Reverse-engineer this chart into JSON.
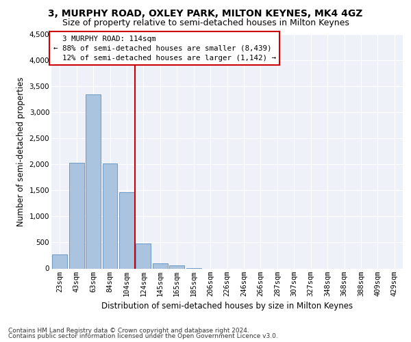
{
  "title1": "3, MURPHY ROAD, OXLEY PARK, MILTON KEYNES, MK4 4GZ",
  "title2": "Size of property relative to semi-detached houses in Milton Keynes",
  "xlabel": "Distribution of semi-detached houses by size in Milton Keynes",
  "ylabel": "Number of semi-detached properties",
  "footer1": "Contains HM Land Registry data © Crown copyright and database right 2024.",
  "footer2": "Contains public sector information licensed under the Open Government Licence v3.0.",
  "categories": [
    "23sqm",
    "43sqm",
    "63sqm",
    "84sqm",
    "104sqm",
    "124sqm",
    "145sqm",
    "165sqm",
    "185sqm",
    "206sqm",
    "226sqm",
    "246sqm",
    "266sqm",
    "287sqm",
    "307sqm",
    "327sqm",
    "348sqm",
    "368sqm",
    "388sqm",
    "409sqm",
    "429sqm"
  ],
  "values": [
    270,
    2030,
    3350,
    2020,
    1460,
    480,
    100,
    55,
    10,
    0,
    0,
    0,
    0,
    0,
    0,
    0,
    0,
    0,
    0,
    0,
    0
  ],
  "bar_color": "#aac4e0",
  "bar_edge_color": "#5a8fc0",
  "property_size": "114sqm",
  "property_name": "3 MURPHY ROAD",
  "pct_smaller": 88,
  "count_smaller": "8,439",
  "pct_larger": 12,
  "count_larger": "1,142",
  "annotation_box_color": "#ffffff",
  "annotation_box_edge": "#cc0000",
  "vline_color": "#cc0000",
  "vline_x": 4.5,
  "ylim": [
    0,
    4500
  ],
  "yticks": [
    0,
    500,
    1000,
    1500,
    2000,
    2500,
    3000,
    3500,
    4000,
    4500
  ],
  "bg_color": "#eef2f8",
  "grid_color": "#ffffff",
  "title1_fontsize": 10,
  "title2_fontsize": 9,
  "axis_label_fontsize": 8.5,
  "tick_fontsize": 7.5,
  "footer_fontsize": 6.5
}
